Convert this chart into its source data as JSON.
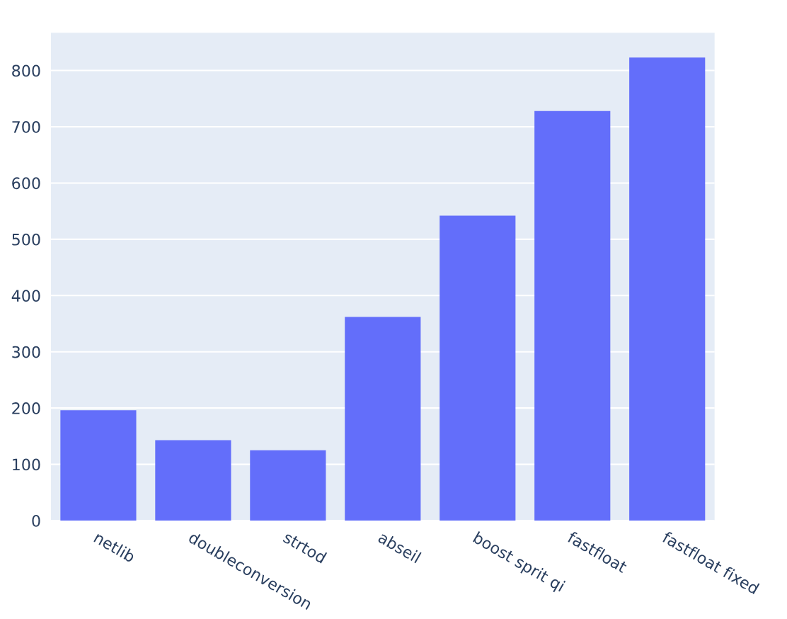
{
  "chart_data": {
    "type": "bar",
    "categories": [
      "netlib",
      "doubleconversion",
      "strtod",
      "abseil",
      "boost sprit qi",
      "fastfloat",
      "fastfloat fixed"
    ],
    "values": [
      196,
      143,
      125,
      362,
      542,
      728,
      823
    ],
    "color": "#636efa",
    "ylim": [
      0,
      867
    ],
    "yticks": [
      0,
      100,
      200,
      300,
      400,
      500,
      600,
      700,
      800
    ],
    "grid": "y"
  }
}
